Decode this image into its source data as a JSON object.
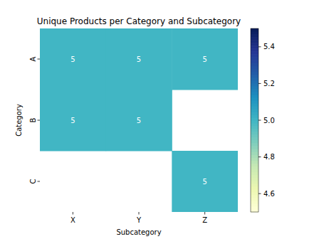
{
  "chart_data": {
    "type": "heatmap",
    "title": "Unique Products per Category and Subcategory",
    "x_label": "Subcategory",
    "y_label": "Category",
    "categories": [
      "X",
      "Y",
      "Z"
    ],
    "rows": [
      "A",
      "B",
      "C"
    ],
    "values": [
      [
        5,
        5,
        5
      ],
      [
        5,
        5,
        null
      ],
      [
        null,
        null,
        5
      ]
    ],
    "data_labels": true,
    "colorbar": {
      "range": [
        4.5,
        5.5
      ],
      "ticks": [
        4.6,
        4.8,
        {
          "value": 5,
          "label": "5.0"
        },
        5.2,
        5.4
      ]
    }
  }
}
